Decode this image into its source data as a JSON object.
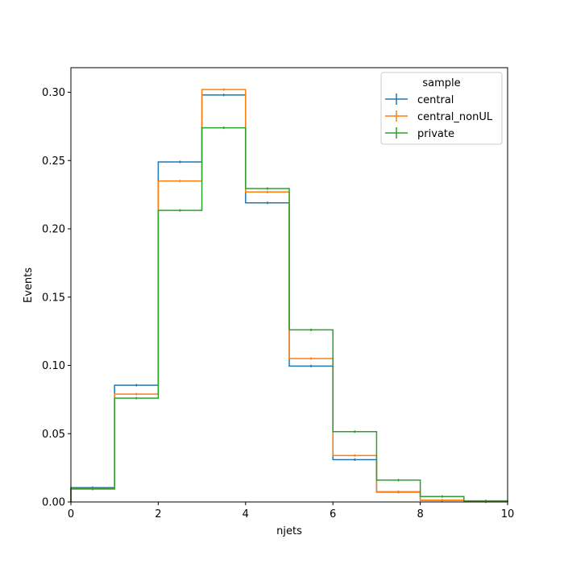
{
  "chart_data": {
    "type": "line",
    "style": "step histogram",
    "xlabel": "njets",
    "ylabel": "Events",
    "xlim": [
      0,
      10
    ],
    "ylim": [
      0,
      0.318
    ],
    "xticks": [
      "0",
      "2",
      "4",
      "6",
      "8",
      "10"
    ],
    "yticks": [
      "0.00",
      "0.05",
      "0.10",
      "0.15",
      "0.20",
      "0.25",
      "0.30"
    ],
    "bin_edges": [
      0,
      1,
      2,
      3,
      4,
      5,
      6,
      7,
      8,
      9,
      10
    ],
    "grid": false,
    "legend": {
      "title": "sample",
      "placement": "top-right"
    },
    "series": [
      {
        "name": "central",
        "color": "#1f77b4",
        "values": [
          0.0105,
          0.0855,
          0.249,
          0.298,
          0.219,
          0.0995,
          0.031,
          0.0072,
          0.0012,
          0.0002
        ]
      },
      {
        "name": "central_nonUL",
        "color": "#ff7f0e",
        "values": [
          0.0095,
          0.079,
          0.235,
          0.302,
          0.227,
          0.105,
          0.034,
          0.0075,
          0.0013,
          0.0002
        ]
      },
      {
        "name": "private",
        "color": "#2ca02c",
        "values": [
          0.0095,
          0.076,
          0.2135,
          0.274,
          0.2295,
          0.126,
          0.0515,
          0.016,
          0.004,
          0.0008
        ]
      }
    ]
  }
}
